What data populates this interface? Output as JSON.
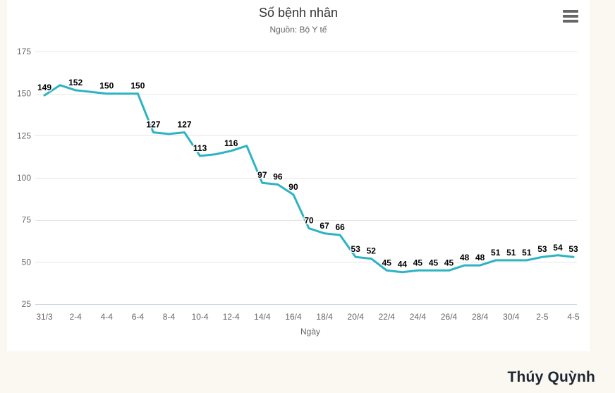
{
  "page": {
    "background_color": "#faf8f0",
    "author_credit": "Thúy Quỳnh"
  },
  "chart": {
    "card_background": "#ffffff",
    "menu_icon": "hamburger-menu-icon",
    "colors": {
      "line": "#2db3c3",
      "grid": "#e6e6e6",
      "axis_line": "#ccd6eb",
      "axis_text": "#666666",
      "title": "#333333",
      "subtitle": "#666666",
      "data_label": "#000000",
      "data_label_halo": "#ffffff",
      "menu_icon": "#666666"
    }
  },
  "chart_data": {
    "type": "line",
    "title": "Số bệnh nhân",
    "subtitle": "Nguồn: Bộ Y tế",
    "xlabel": "Ngày",
    "ylabel": "",
    "ylim": [
      25,
      175
    ],
    "yticks": [
      25,
      50,
      75,
      100,
      125,
      150,
      175
    ],
    "grid": "horizontal",
    "legend": "none",
    "markers": "none",
    "x_tick_every": 2,
    "x_tick_labels": [
      "31/3",
      "2-4",
      "4-4",
      "6-4",
      "8-4",
      "10-4",
      "12-4",
      "14/4",
      "16/4",
      "18/4",
      "20/4",
      "22/4",
      "24/4",
      "26/4",
      "28/4",
      "30/4",
      "2-5",
      "4-5"
    ],
    "points": [
      {
        "v": 149,
        "label": "149"
      },
      {
        "v": 155,
        "label": ""
      },
      {
        "v": 152,
        "label": "152"
      },
      {
        "v": 151,
        "label": ""
      },
      {
        "v": 150,
        "label": "150"
      },
      {
        "v": 150,
        "label": ""
      },
      {
        "v": 150,
        "label": "150"
      },
      {
        "v": 127,
        "label": "127"
      },
      {
        "v": 126,
        "label": ""
      },
      {
        "v": 127,
        "label": "127"
      },
      {
        "v": 113,
        "label": "113"
      },
      {
        "v": 114,
        "label": ""
      },
      {
        "v": 116,
        "label": "116"
      },
      {
        "v": 119,
        "label": ""
      },
      {
        "v": 97,
        "label": "97"
      },
      {
        "v": 96,
        "label": "96"
      },
      {
        "v": 90,
        "label": "90"
      },
      {
        "v": 70,
        "label": "70"
      },
      {
        "v": 67,
        "label": "67"
      },
      {
        "v": 66,
        "label": "66"
      },
      {
        "v": 53,
        "label": "53"
      },
      {
        "v": 52,
        "label": "52"
      },
      {
        "v": 45,
        "label": "45"
      },
      {
        "v": 44,
        "label": "44"
      },
      {
        "v": 45,
        "label": "45"
      },
      {
        "v": 45,
        "label": "45"
      },
      {
        "v": 45,
        "label": "45"
      },
      {
        "v": 48,
        "label": "48"
      },
      {
        "v": 48,
        "label": "48"
      },
      {
        "v": 51,
        "label": "51"
      },
      {
        "v": 51,
        "label": "51"
      },
      {
        "v": 51,
        "label": "51"
      },
      {
        "v": 53,
        "label": "53"
      },
      {
        "v": 54,
        "label": "54"
      },
      {
        "v": 53,
        "label": "53"
      }
    ]
  }
}
